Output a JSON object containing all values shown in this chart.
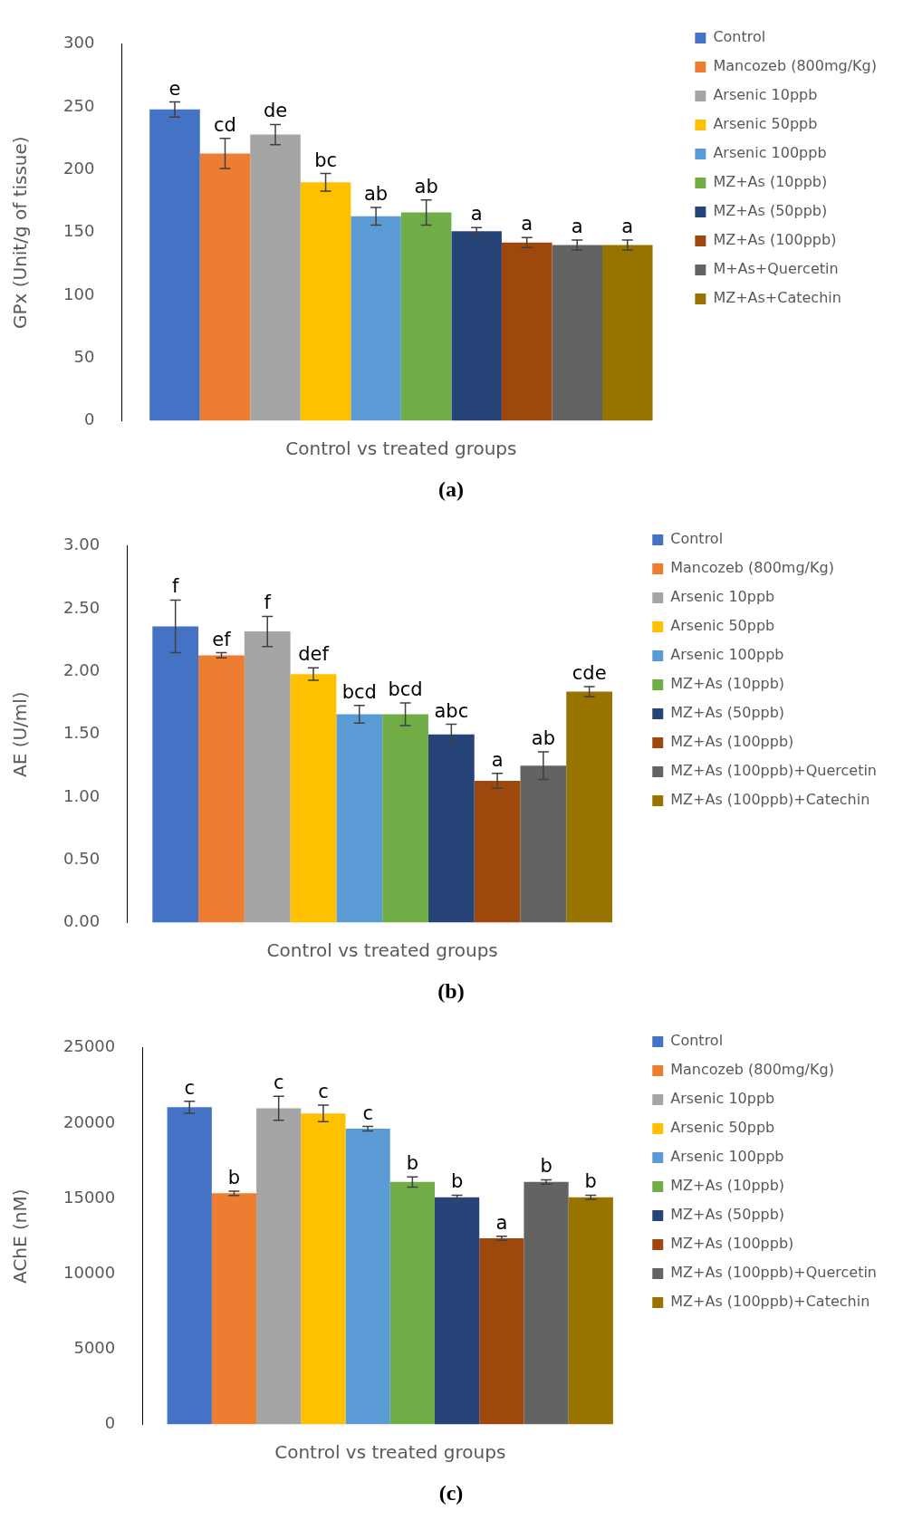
{
  "chart_data": [
    {
      "type": "bar",
      "title": "(a)",
      "xlabel": "Control vs treated groups",
      "ylabel": "GPx (Unit/g of tissue)",
      "categories": [
        null
      ],
      "ylim": [
        0,
        300
      ],
      "yticks": [
        0,
        50,
        100,
        150,
        200,
        250,
        300
      ],
      "grid": false,
      "legend": "right",
      "series": [
        {
          "name": "Control",
          "color": "#4472c4",
          "values": [
            248
          ],
          "errors": [
            6
          ]
        },
        {
          "name": "Mancozeb (800mg/Kg)",
          "color": "#ed7d31",
          "values": [
            213
          ],
          "errors": [
            12
          ]
        },
        {
          "name": "Arsenic 10ppb",
          "color": "#a5a5a5",
          "values": [
            228
          ],
          "errors": [
            8
          ]
        },
        {
          "name": "Arsenic 50ppb",
          "color": "#ffc000",
          "values": [
            190
          ],
          "errors": [
            7
          ]
        },
        {
          "name": "Arsenic 100ppb",
          "color": "#5b9bd5",
          "values": [
            163
          ],
          "errors": [
            7
          ]
        },
        {
          "name": "MZ+As (10ppb)",
          "color": "#70ad47",
          "values": [
            166
          ],
          "errors": [
            10
          ]
        },
        {
          "name": "MZ+As (50ppb)",
          "color": "#264478",
          "values": [
            151
          ],
          "errors": [
            3
          ]
        },
        {
          "name": "MZ+As (100ppb)",
          "color": "#9e480e",
          "values": [
            142
          ],
          "errors": [
            4
          ]
        },
        {
          "name": "M+As+Quercetin",
          "color": "#636363",
          "values": [
            140
          ],
          "errors": [
            4
          ]
        },
        {
          "name": "MZ+As+Catechin",
          "color": "#997300",
          "values": [
            140
          ],
          "errors": [
            4
          ]
        }
      ],
      "annotations": [
        "e",
        "cd",
        "de",
        "bc",
        "ab",
        "ab",
        "a",
        "a",
        "a",
        "a"
      ]
    },
    {
      "type": "bar",
      "title": "(b)",
      "xlabel": "Control vs treated groups",
      "ylabel": "AE (U/ml)",
      "categories": [
        null
      ],
      "ylim": [
        0,
        3
      ],
      "yticks": [
        {
          "value": 0,
          "label": "0.00"
        },
        {
          "value": 0.5,
          "label": "0.50"
        },
        {
          "value": 1,
          "label": "1.00"
        },
        {
          "value": 1.5,
          "label": "1.50"
        },
        {
          "value": 2,
          "label": "2.00"
        },
        {
          "value": 2.5,
          "label": "2.50"
        },
        {
          "value": 3,
          "label": "3.00"
        }
      ],
      "grid": false,
      "legend": "right",
      "series": [
        {
          "name": "Control",
          "color": "#4472c4",
          "values": [
            2.36
          ],
          "errors": [
            0.21
          ]
        },
        {
          "name": "Mancozeb (800mg/Kg)",
          "color": "#ed7d31",
          "values": [
            2.13
          ],
          "errors": [
            0.02
          ]
        },
        {
          "name": "Arsenic 10ppb",
          "color": "#a5a5a5",
          "values": [
            2.32
          ],
          "errors": [
            0.12
          ]
        },
        {
          "name": "Arsenic 50ppb",
          "color": "#ffc000",
          "values": [
            1.98
          ],
          "errors": [
            0.05
          ]
        },
        {
          "name": "Arsenic 100ppb",
          "color": "#5b9bd5",
          "values": [
            1.66
          ],
          "errors": [
            0.07
          ]
        },
        {
          "name": "MZ+As (10ppb)",
          "color": "#70ad47",
          "values": [
            1.66
          ],
          "errors": [
            0.09
          ]
        },
        {
          "name": "MZ+As (50ppb)",
          "color": "#264478",
          "values": [
            1.5
          ],
          "errors": [
            0.08
          ]
        },
        {
          "name": "MZ+As (100ppb)",
          "color": "#9e480e",
          "values": [
            1.13
          ],
          "errors": [
            0.06
          ]
        },
        {
          "name": "MZ+As (100ppb)+Quercetin",
          "color": "#636363",
          "values": [
            1.25
          ],
          "errors": [
            0.11
          ]
        },
        {
          "name": "MZ+As (100ppb)+Catechin",
          "color": "#997300",
          "values": [
            1.84
          ],
          "errors": [
            0.04
          ]
        }
      ],
      "annotations": [
        "f",
        "ef",
        "f",
        "def",
        "bcd",
        "bcd",
        "abc",
        "a",
        "ab",
        "cde"
      ]
    },
    {
      "type": "bar",
      "title": "(c)",
      "xlabel": "Control vs treated groups",
      "ylabel": "AChE (nM)",
      "categories": [
        null
      ],
      "ylim": [
        0,
        25000
      ],
      "yticks": [
        0,
        5000,
        10000,
        15000,
        20000,
        25000
      ],
      "grid": false,
      "legend": "right",
      "series": [
        {
          "name": "Control",
          "color": "#4472c4",
          "values": [
            21060
          ],
          "errors": [
            400
          ]
        },
        {
          "name": "Mancozeb (800mg/Kg)",
          "color": "#ed7d31",
          "values": [
            15350
          ],
          "errors": [
            140
          ]
        },
        {
          "name": "Arsenic 10ppb",
          "color": "#a5a5a5",
          "values": [
            20990
          ],
          "errors": [
            800
          ]
        },
        {
          "name": "Arsenic 50ppb",
          "color": "#ffc000",
          "values": [
            20650
          ],
          "errors": [
            550
          ]
        },
        {
          "name": "Arsenic 100ppb",
          "color": "#5b9bd5",
          "values": [
            19630
          ],
          "errors": [
            150
          ]
        },
        {
          "name": "MZ+As (10ppb)",
          "color": "#70ad47",
          "values": [
            16100
          ],
          "errors": [
            340
          ]
        },
        {
          "name": "MZ+As (50ppb)",
          "color": "#264478",
          "values": [
            15080
          ],
          "errors": [
            140
          ]
        },
        {
          "name": "MZ+As (100ppb)",
          "color": "#9e480e",
          "values": [
            12360
          ],
          "errors": [
            140
          ]
        },
        {
          "name": "MZ+As (100ppb)+Quercetin",
          "color": "#636363",
          "values": [
            16100
          ],
          "errors": [
            140
          ]
        },
        {
          "name": "MZ+As (100ppb)+Catechin",
          "color": "#997300",
          "values": [
            15080
          ],
          "errors": [
            140
          ]
        }
      ],
      "annotations": [
        "c",
        "b",
        "c",
        "c",
        "c",
        "b",
        "b",
        "a",
        "b",
        "b"
      ]
    }
  ]
}
